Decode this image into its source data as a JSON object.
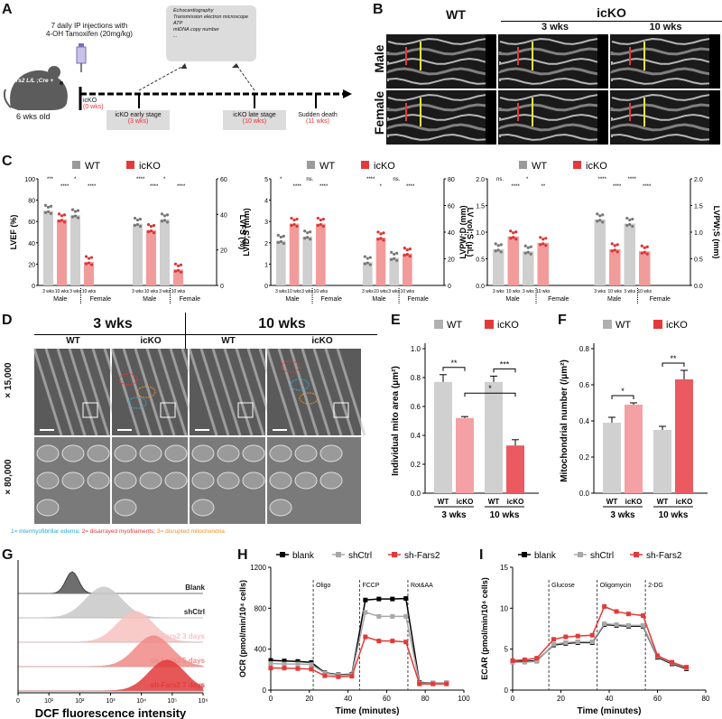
{
  "panels": {
    "A": "A",
    "B": "B",
    "C": "C",
    "D": "D",
    "E": "E",
    "F": "F",
    "G": "G",
    "H": "H",
    "I": "I"
  },
  "panelA": {
    "injection": "7 daily IP injections with",
    "drug": "4-OH Tamoxifen (20mg/kg)",
    "mouse_age": "6 wks old",
    "mouse_genotype": "Fars2 L/L ;Cre +",
    "assays": [
      "Echocardiography",
      "Transmission electron microscope",
      "ATP",
      "mtDNA copy number",
      "..."
    ],
    "timeline": [
      {
        "label": "icKO",
        "time": "(0 wks)"
      },
      {
        "label": "icKO early stage",
        "time": "(3 wks)"
      },
      {
        "label": "icKO late stage",
        "time": "(10 wks)"
      },
      {
        "label": "Sudden death",
        "time": "(11 wks)"
      }
    ]
  },
  "panelB": {
    "wt": "WT",
    "icko": "icKO",
    "w3": "3 wks",
    "w10": "10 wks",
    "male": "Male",
    "female": "Female"
  },
  "panelC": {
    "legend_wt": "WT",
    "legend_icko": "icKO",
    "groups": [
      "Male",
      "Female"
    ],
    "charts": [
      {
        "left_label": "LVEF (%)",
        "right_label": "LVFS (%)",
        "left_ticks": [
          "0",
          "20",
          "40",
          "60",
          "80",
          "100"
        ],
        "right_ticks": [
          "0",
          "20",
          "40",
          "60"
        ]
      },
      {
        "left_label": "LVID;S (mm)",
        "right_label": "LV vol;S (μL)",
        "left_ticks": [
          "0",
          "1",
          "2",
          "3",
          "4",
          "5"
        ],
        "right_ticks": [
          "0",
          "20",
          "40",
          "60",
          "80"
        ]
      },
      {
        "left_label": "LVPW;D (mm)",
        "right_label": "LVPW;S (mm)",
        "left_ticks": [
          "0.0",
          "0.5",
          "1.0",
          "1.5",
          "2.0"
        ],
        "right_ticks": [
          "0.0",
          "0.5",
          "1.0",
          "1.5",
          "2.0"
        ]
      }
    ],
    "xticks": [
      "3 wks",
      "10 wks",
      "3 wks",
      "10 wks"
    ],
    "sig": [
      "***",
      "****",
      "*",
      "****",
      "****",
      "****",
      "*",
      "****",
      "*",
      "****",
      "ns.",
      "****",
      "****",
      "*",
      "ns.",
      "****",
      "ns.",
      "****",
      "*",
      "**",
      "****",
      "****",
      "****",
      "****",
      "****"
    ]
  },
  "panelD": {
    "w3": "3 wks",
    "w10": "10 wks",
    "wt": "WT",
    "icko": "icKO",
    "mag1": "× 15,000",
    "mag2": "× 80,000",
    "caption_parts": [
      "1= intermyofibrillar edema;",
      "2= disarrayed myofilaments;",
      "3= disrupted mitochondria"
    ]
  },
  "chart_data": [
    {
      "type": "bar",
      "panel": "E",
      "ylabel": "Individual mito area (μm²)",
      "ylim": [
        0,
        1.0
      ],
      "yticks": [
        "0.0",
        "0.2",
        "0.4",
        "0.6",
        "0.8",
        "1.0"
      ],
      "categories": [
        "WT",
        "icKO",
        "WT",
        "icKO"
      ],
      "groups": [
        "3 wks",
        "10 wks"
      ],
      "values": [
        0.77,
        0.52,
        0.77,
        0.33
      ],
      "errors": [
        0.05,
        0.01,
        0.04,
        0.04
      ],
      "colors": [
        "#d0d0d0",
        "#f4a0a4",
        "#d0d0d0",
        "#ea5a60"
      ],
      "legend": [
        "WT",
        "icKO"
      ],
      "sig": [
        "**",
        "***",
        "*"
      ]
    },
    {
      "type": "bar",
      "panel": "F",
      "ylabel": "Mitochondrial number (/μm²)",
      "ylim": [
        0,
        0.8
      ],
      "yticks": [
        "0.0",
        "0.2",
        "0.4",
        "0.6",
        "0.8"
      ],
      "categories": [
        "WT",
        "icKO",
        "WT",
        "icKO"
      ],
      "groups": [
        "3 wks",
        "10 wks"
      ],
      "values": [
        0.39,
        0.49,
        0.35,
        0.63
      ],
      "errors": [
        0.03,
        0.01,
        0.02,
        0.05
      ],
      "colors": [
        "#d0d0d0",
        "#f4a0a4",
        "#d0d0d0",
        "#ea5a60"
      ],
      "legend": [
        "WT",
        "icKO"
      ],
      "sig": [
        "*",
        "**"
      ]
    },
    {
      "type": "area",
      "panel": "G",
      "xlabel": "DCF fluorescence intensity",
      "xticks": [
        "0",
        "10¹",
        "10²",
        "10³",
        "10⁴",
        "10⁵",
        "10⁶"
      ],
      "series": [
        {
          "name": "Blank",
          "color": "#555555"
        },
        {
          "name": "shCtrl",
          "color": "#c8c8c8"
        },
        {
          "name": "sh-Fars2 3 days",
          "color": "#f7c2c0"
        },
        {
          "name": "sh-Fars2 5 days",
          "color": "#f08a88"
        },
        {
          "name": "sh-Fars2 7 days",
          "color": "#e23a3a"
        }
      ]
    },
    {
      "type": "line",
      "panel": "H",
      "xlabel": "Time (minutes)",
      "ylabel": "OCR (pmol/min/10⁴ cells)",
      "xlim": [
        0,
        100
      ],
      "ylim": [
        0,
        1200
      ],
      "xticks": [
        "0",
        "20",
        "40",
        "60",
        "80",
        "100"
      ],
      "yticks": [
        "0",
        "400",
        "800",
        "1200"
      ],
      "markers": [
        {
          "x": 22,
          "label": "Oligo"
        },
        {
          "x": 46,
          "label": "FCCP"
        },
        {
          "x": 71,
          "label": "Rot&AA"
        }
      ],
      "x": [
        0,
        7,
        14,
        21,
        28,
        35,
        42,
        49,
        56,
        63,
        70,
        77,
        84,
        91
      ],
      "series": [
        {
          "name": "blank",
          "color": "#000000",
          "values": [
            290,
            285,
            280,
            270,
            170,
            150,
            155,
            880,
            890,
            890,
            895,
            75,
            70,
            70
          ]
        },
        {
          "name": "shCtrl",
          "color": "#a8a8a8",
          "values": [
            260,
            255,
            255,
            250,
            165,
            145,
            150,
            760,
            720,
            720,
            720,
            70,
            70,
            68
          ]
        },
        {
          "name": "sh-Fars2",
          "color": "#e23a3a",
          "values": [
            215,
            215,
            210,
            205,
            140,
            130,
            135,
            520,
            480,
            480,
            470,
            60,
            60,
            60
          ]
        }
      ]
    },
    {
      "type": "line",
      "panel": "I",
      "xlabel": "Time (minutes)",
      "ylabel": "ECAR (pmol/min/10⁴ cells)",
      "xlim": [
        0,
        80
      ],
      "ylim": [
        0,
        15
      ],
      "xticks": [
        "0",
        "20",
        "40",
        "60",
        "80"
      ],
      "yticks": [
        "0",
        "5",
        "10",
        "15"
      ],
      "markers": [
        {
          "x": 15,
          "label": "Glucose"
        },
        {
          "x": 35,
          "label": "Oligomycin"
        },
        {
          "x": 55,
          "label": "2-DG"
        }
      ],
      "x": [
        0,
        5,
        10,
        17,
        22,
        27,
        33,
        38,
        43,
        48,
        54,
        60,
        66,
        72
      ],
      "series": [
        {
          "name": "blank",
          "color": "#000000",
          "values": [
            3.5,
            3.5,
            3.6,
            5.5,
            5.7,
            5.8,
            5.8,
            8.0,
            7.9,
            7.8,
            7.8,
            4.0,
            3.2,
            2.6
          ]
        },
        {
          "name": "shCtrl",
          "color": "#a8a8a8",
          "values": [
            3.4,
            3.4,
            3.5,
            5.6,
            5.8,
            5.9,
            5.9,
            8.1,
            8.0,
            7.9,
            7.9,
            4.1,
            3.3,
            2.7
          ]
        },
        {
          "name": "sh-Fars2",
          "color": "#e23a3a",
          "values": [
            3.6,
            3.7,
            3.9,
            6.2,
            6.5,
            6.6,
            6.7,
            10.2,
            9.6,
            9.3,
            9.1,
            4.2,
            3.4,
            2.8
          ]
        }
      ]
    }
  ]
}
